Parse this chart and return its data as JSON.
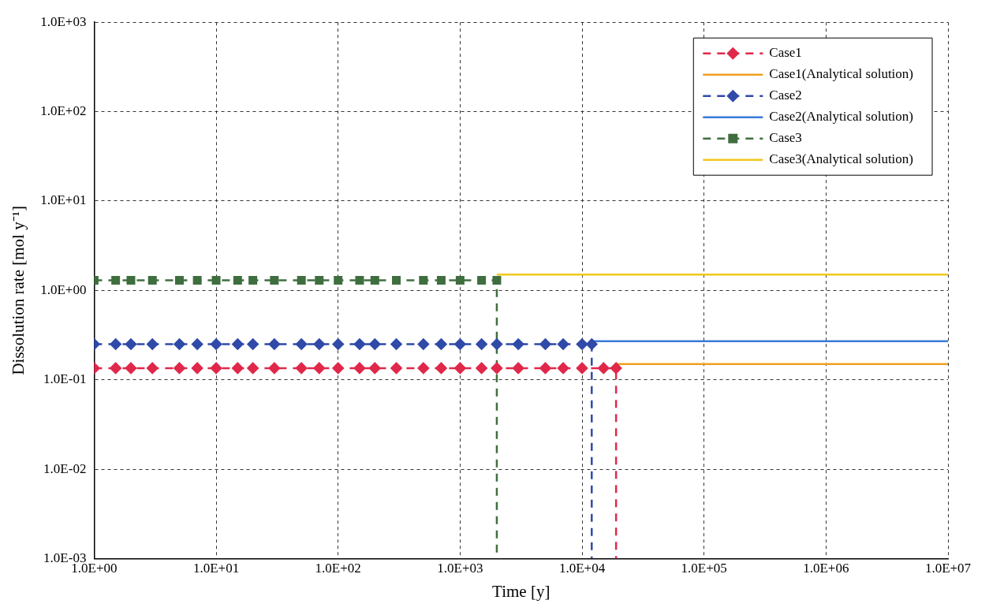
{
  "chart_data": {
    "type": "line",
    "xlabel": "Time [y]",
    "ylabel": "Dissolution rate [mol y⁻¹]",
    "log": "xy",
    "grid": true,
    "legend": "top right",
    "xlim": [
      1,
      10000000
    ],
    "ylim": [
      0.001,
      1000
    ],
    "xticks": [
      {
        "value": 1,
        "label": "1.0E+00"
      },
      {
        "value": 10,
        "label": "1.0E+01"
      },
      {
        "value": 100,
        "label": "1.0E+02"
      },
      {
        "value": 1000,
        "label": "1.0E+03"
      },
      {
        "value": 10000,
        "label": "1.0E+04"
      },
      {
        "value": 100000,
        "label": "1.0E+05"
      },
      {
        "value": 1000000,
        "label": "1.0E+06"
      },
      {
        "value": 10000000,
        "label": "1.0E+07"
      }
    ],
    "yticks": [
      {
        "value": 0.001,
        "label": "1.0E-03"
      },
      {
        "value": 0.01,
        "label": "1.0E-02"
      },
      {
        "value": 0.1,
        "label": "1.0E-01"
      },
      {
        "value": 1,
        "label": "1.0E+00"
      },
      {
        "value": 10,
        "label": "1.0E+01"
      },
      {
        "value": 100,
        "label": "1.0E+02"
      },
      {
        "value": 1000,
        "label": "1.0E+03"
      }
    ],
    "series": [
      {
        "name": "Case1",
        "color": "#e0284a",
        "line_style": "dashed",
        "marker": "diamond",
        "x": [
          1,
          1.5,
          2,
          3,
          5,
          7,
          10,
          15,
          20,
          30,
          50,
          70,
          100,
          150,
          200,
          300,
          500,
          700,
          1000,
          1500,
          2000,
          3000,
          5000,
          7000,
          10000,
          15000,
          19000,
          19000
        ],
        "values": [
          0.135,
          0.135,
          0.135,
          0.135,
          0.135,
          0.135,
          0.135,
          0.135,
          0.135,
          0.135,
          0.135,
          0.135,
          0.135,
          0.135,
          0.135,
          0.135,
          0.135,
          0.135,
          0.135,
          0.135,
          0.135,
          0.135,
          0.135,
          0.135,
          0.135,
          0.135,
          0.135,
          0.001
        ]
      },
      {
        "name": "Case1(Analytical solution)",
        "color": "#f0a020",
        "line_style": "solid",
        "marker": "none",
        "x": [
          19000,
          10000000
        ],
        "values": [
          0.15,
          0.15
        ]
      },
      {
        "name": "Case2",
        "color": "#2f4aa8",
        "line_style": "dashed",
        "marker": "diamond",
        "x": [
          1,
          1.5,
          2,
          3,
          5,
          7,
          10,
          15,
          20,
          30,
          50,
          70,
          100,
          150,
          200,
          300,
          500,
          700,
          1000,
          1500,
          2000,
          3000,
          5000,
          7000,
          10000,
          12000,
          12000
        ],
        "values": [
          0.25,
          0.25,
          0.25,
          0.25,
          0.25,
          0.25,
          0.25,
          0.25,
          0.25,
          0.25,
          0.25,
          0.25,
          0.25,
          0.25,
          0.25,
          0.25,
          0.25,
          0.25,
          0.25,
          0.25,
          0.25,
          0.25,
          0.25,
          0.25,
          0.25,
          0.25,
          0.001
        ]
      },
      {
        "name": "Case2(Analytical solution)",
        "color": "#3a7ad8",
        "line_style": "solid",
        "marker": "none",
        "x": [
          12000,
          10000000
        ],
        "values": [
          0.27,
          0.27
        ]
      },
      {
        "name": "Case3",
        "color": "#3f6e3f",
        "line_style": "dashed",
        "marker": "square",
        "x": [
          1,
          1.5,
          2,
          3,
          5,
          7,
          10,
          15,
          20,
          30,
          50,
          70,
          100,
          150,
          200,
          300,
          500,
          700,
          1000,
          1500,
          2000,
          2000
        ],
        "values": [
          1.3,
          1.3,
          1.3,
          1.3,
          1.3,
          1.3,
          1.3,
          1.3,
          1.3,
          1.3,
          1.3,
          1.3,
          1.3,
          1.3,
          1.3,
          1.3,
          1.3,
          1.3,
          1.3,
          1.3,
          1.3,
          0.001
        ]
      },
      {
        "name": "Case3(Analytical solution)",
        "color": "#f2c81a",
        "line_style": "solid",
        "marker": "none",
        "x": [
          2000,
          10000000
        ],
        "values": [
          1.5,
          1.5
        ]
      }
    ]
  }
}
